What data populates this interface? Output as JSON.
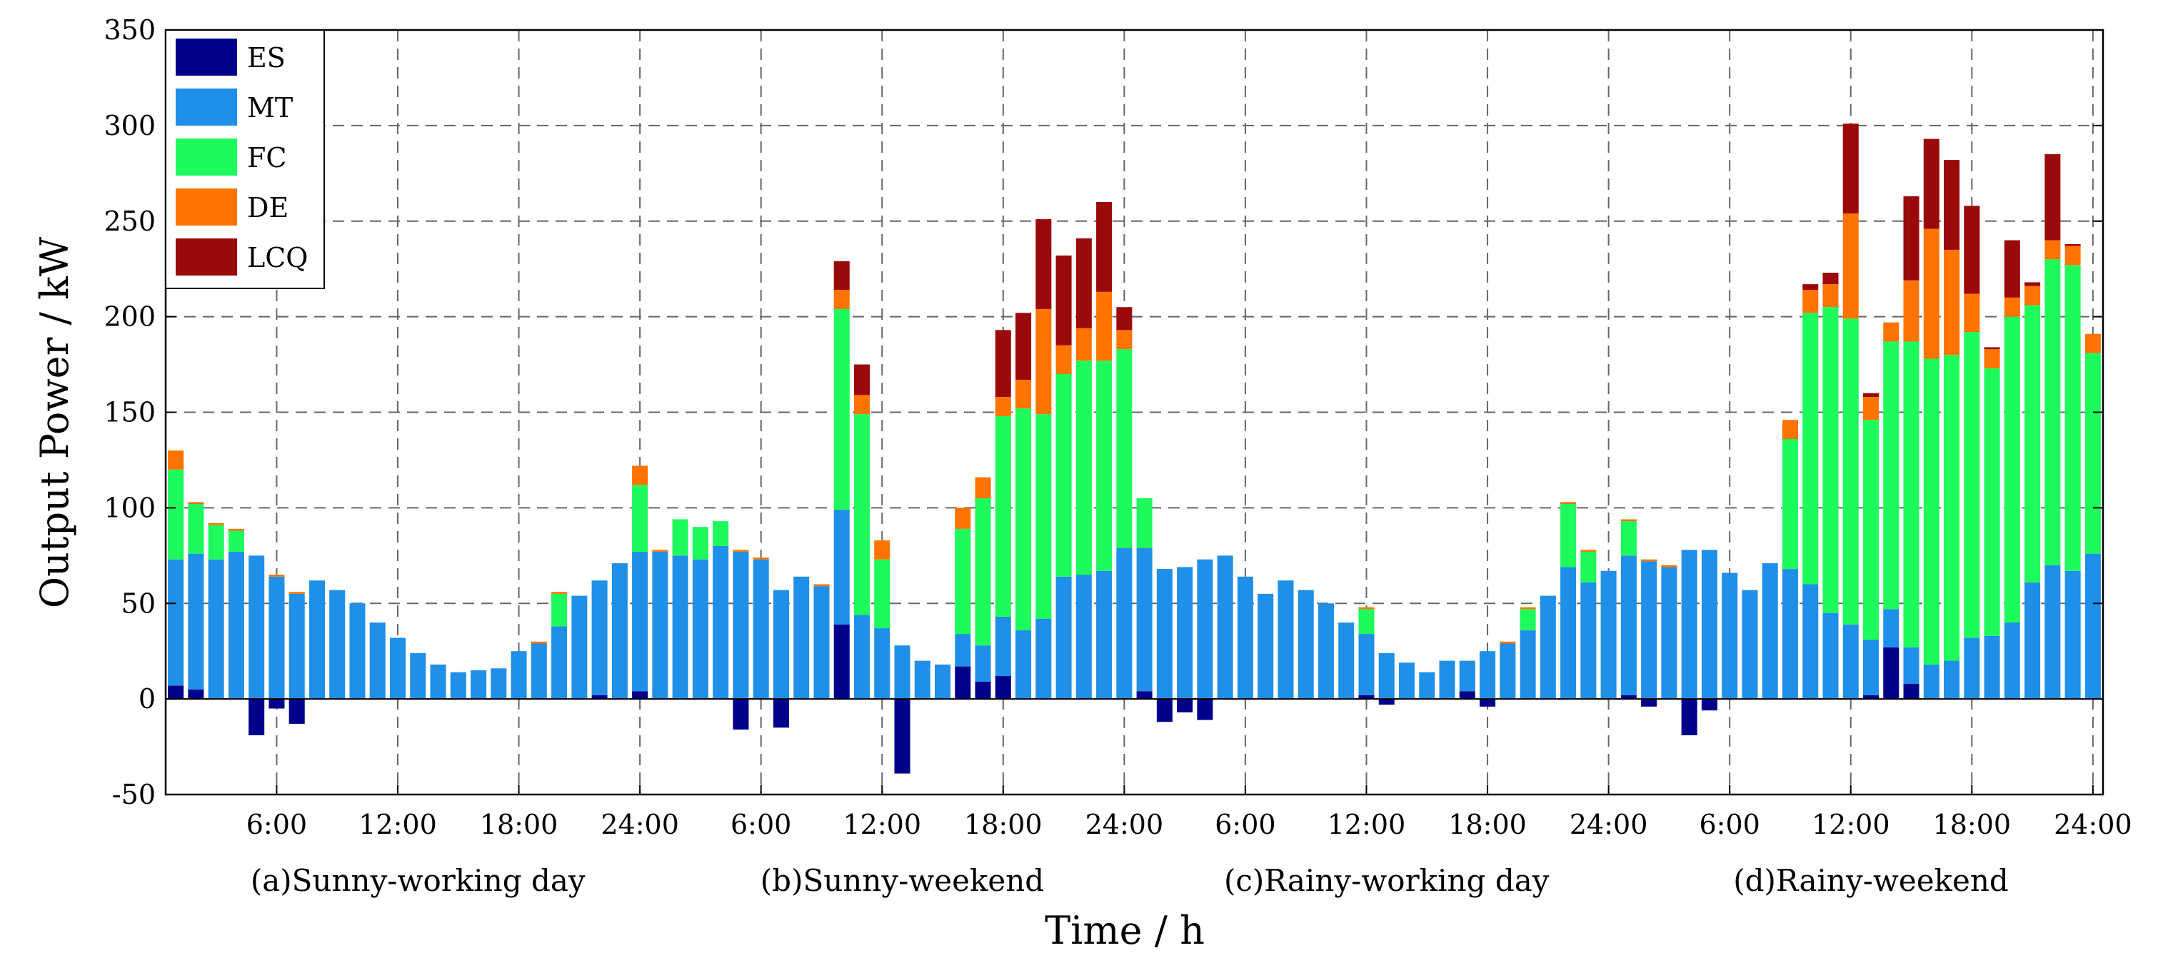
{
  "chart_data": {
    "type": "bar",
    "stacked": true,
    "title": "",
    "xlabel": "Time / h",
    "ylabel": "Output Power / kW",
    "ylim": [
      -50,
      350
    ],
    "yticks": [
      -50,
      0,
      50,
      100,
      150,
      200,
      250,
      300,
      350
    ],
    "grid": true,
    "legend_position": "top-left",
    "hours": [
      1,
      2,
      3,
      4,
      5,
      6,
      7,
      8,
      9,
      10,
      11,
      12,
      13,
      14,
      15,
      16,
      17,
      18,
      19,
      20,
      21,
      22,
      23,
      24,
      25,
      26,
      27,
      28,
      29,
      30,
      31,
      32,
      33,
      34,
      35,
      36,
      37,
      38,
      39,
      40,
      41,
      42,
      43,
      44,
      45,
      46,
      47,
      48,
      49,
      50,
      51,
      52,
      53,
      54,
      55,
      56,
      57,
      58,
      59,
      60,
      61,
      62,
      63,
      64,
      65,
      66,
      67,
      68,
      69,
      70,
      71,
      72,
      73,
      74,
      75,
      76,
      77,
      78,
      79,
      80,
      81,
      82,
      83,
      84,
      85,
      86,
      87,
      88,
      89,
      90,
      91,
      92,
      93,
      94,
      95,
      96
    ],
    "x_ticks": [
      {
        "label": "6:00",
        "hour": 6
      },
      {
        "label": "12:00",
        "hour": 12
      },
      {
        "label": "18:00",
        "hour": 18
      },
      {
        "label": "24:00",
        "hour": 24
      },
      {
        "label": "6:00",
        "hour": 30
      },
      {
        "label": "12:00",
        "hour": 36
      },
      {
        "label": "18:00",
        "hour": 42
      },
      {
        "label": "24:00",
        "hour": 48
      },
      {
        "label": "6:00",
        "hour": 54
      },
      {
        "label": "12:00",
        "hour": 60
      },
      {
        "label": "18:00",
        "hour": 66
      },
      {
        "label": "24:00",
        "hour": 72
      },
      {
        "label": "6:00",
        "hour": 78
      },
      {
        "label": "12:00",
        "hour": 84
      },
      {
        "label": "18:00",
        "hour": 90
      },
      {
        "label": "24:00",
        "hour": 96
      }
    ],
    "scenarios": [
      {
        "label": "(a)Sunny-working day",
        "center_hour": 12.5
      },
      {
        "label": "(b)Sunny-weekend",
        "center_hour": 36.5
      },
      {
        "label": "(c)Rainy-working day",
        "center_hour": 60.5
      },
      {
        "label": "(d)Rainy-weekend",
        "center_hour": 84.5
      }
    ],
    "series": [
      {
        "name": "ES",
        "color": "#00008B",
        "values": [
          7,
          5,
          0,
          0,
          -19,
          -5,
          -13,
          0,
          0,
          0,
          0,
          0,
          0,
          0,
          0,
          0,
          0,
          0,
          0,
          0,
          0,
          2,
          0,
          4,
          0,
          0,
          0,
          0,
          -16,
          0,
          -15,
          0,
          0,
          39,
          0,
          0,
          -39,
          0,
          0,
          17,
          9,
          12,
          0,
          0,
          0,
          0,
          0,
          0,
          4,
          -12,
          -7,
          -11,
          0,
          0,
          0,
          0,
          0,
          0,
          0,
          2,
          -3,
          0,
          0,
          0,
          4,
          -4,
          0,
          0,
          0,
          0,
          0,
          0,
          2,
          -4,
          0,
          -19,
          -6,
          0,
          0,
          0,
          0,
          0,
          0,
          0,
          2,
          27,
          8,
          0,
          0,
          0,
          0,
          0,
          0,
          0,
          0,
          0
        ]
      },
      {
        "name": "MT",
        "color": "#1F8FE8",
        "values": [
          66,
          71,
          73,
          77,
          75,
          64,
          55,
          62,
          57,
          50,
          40,
          32,
          24,
          18,
          14,
          15,
          16,
          25,
          29,
          38,
          54,
          60,
          71,
          73,
          77,
          75,
          73,
          80,
          77,
          73,
          57,
          64,
          59,
          60,
          44,
          37,
          28,
          20,
          18,
          17,
          19,
          31,
          36,
          42,
          64,
          65,
          67,
          79,
          75,
          68,
          69,
          73,
          75,
          64,
          55,
          62,
          57,
          50,
          40,
          32,
          24,
          19,
          14,
          20,
          16,
          25,
          29,
          36,
          54,
          69,
          61,
          67,
          73,
          72,
          69,
          78,
          78,
          66,
          57,
          71,
          68,
          60,
          45,
          39,
          29,
          20,
          19,
          18,
          20,
          32,
          33,
          40,
          61,
          70,
          67,
          76
        ]
      },
      {
        "name": "FC",
        "color": "#1EFA5C",
        "values": [
          47,
          26,
          18,
          11,
          0,
          0,
          0,
          0,
          0,
          0,
          0,
          0,
          0,
          0,
          0,
          0,
          0,
          0,
          0,
          17,
          0,
          0,
          0,
          35,
          0,
          19,
          17,
          13,
          0,
          0,
          0,
          0,
          0,
          105,
          105,
          36,
          0,
          0,
          0,
          55,
          77,
          105,
          116,
          107,
          106,
          112,
          110,
          104,
          26,
          0,
          0,
          0,
          0,
          0,
          0,
          0,
          0,
          0,
          0,
          13,
          0,
          0,
          0,
          0,
          0,
          0,
          0,
          11,
          0,
          33,
          16,
          0,
          18,
          0,
          0,
          0,
          0,
          0,
          0,
          0,
          68,
          142,
          160,
          160,
          115,
          140,
          160,
          160,
          160,
          160,
          140,
          160,
          145,
          160,
          160,
          105
        ]
      },
      {
        "name": "DE",
        "color": "#FF7400",
        "values": [
          10,
          1,
          1,
          1,
          0,
          1,
          1,
          0,
          0,
          0,
          0,
          0,
          0,
          0,
          0,
          0,
          0,
          0,
          1,
          1,
          0,
          0,
          0,
          10,
          1,
          0,
          0,
          0,
          1,
          1,
          0,
          0,
          1,
          10,
          10,
          10,
          0,
          0,
          0,
          11,
          11,
          10,
          15,
          55,
          15,
          17,
          36,
          10,
          0,
          0,
          0,
          0,
          0,
          0,
          0,
          0,
          0,
          0,
          0,
          1,
          0,
          0,
          0,
          0,
          0,
          0,
          1,
          1,
          0,
          1,
          1,
          0,
          1,
          1,
          1,
          0,
          0,
          0,
          0,
          0,
          10,
          12,
          12,
          55,
          12,
          10,
          32,
          68,
          55,
          20,
          10,
          10,
          10,
          10,
          10,
          10
        ]
      },
      {
        "name": "LCQ",
        "color": "#9B0A0A",
        "values": [
          0,
          0,
          0,
          0,
          0,
          0,
          0,
          0,
          0,
          0,
          0,
          0,
          0,
          0,
          0,
          0,
          0,
          0,
          0,
          0,
          0,
          0,
          0,
          0,
          0,
          0,
          0,
          0,
          0,
          0,
          0,
          0,
          0,
          15,
          16,
          0,
          0,
          0,
          0,
          0,
          0,
          35,
          35,
          47,
          47,
          47,
          47,
          12,
          0,
          0,
          0,
          0,
          0,
          0,
          0,
          0,
          0,
          0,
          0,
          0,
          0,
          0,
          0,
          0,
          0,
          0,
          0,
          0,
          0,
          0,
          0,
          0,
          0,
          0,
          0,
          0,
          0,
          0,
          0,
          0,
          0,
          3,
          6,
          47,
          2,
          0,
          44,
          47,
          47,
          46,
          1,
          30,
          2,
          45,
          1,
          0
        ]
      }
    ]
  }
}
